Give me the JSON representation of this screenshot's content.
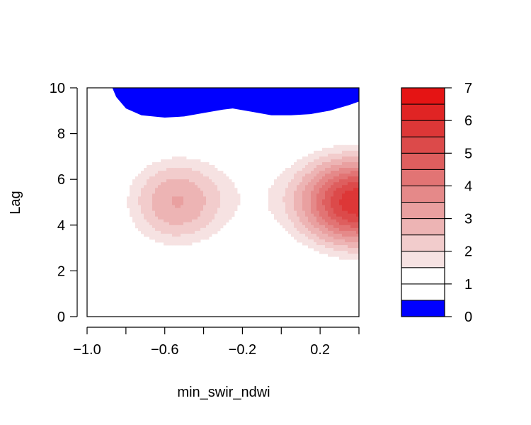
{
  "chart_data": {
    "type": "heatmap",
    "title": "",
    "xlabel": "min_swir_ndwi",
    "ylabel": "Lag",
    "xlim": [
      -1.0,
      0.4
    ],
    "ylim": [
      0,
      10
    ],
    "x_ticks": [
      -1.0,
      -0.8,
      -0.6,
      -0.4,
      -0.2,
      0.0,
      0.2,
      0.4
    ],
    "x_tick_labels": [
      "−1.0",
      "−0.6",
      "−0.2",
      "0.2"
    ],
    "x_tick_label_values": [
      -1.0,
      -0.6,
      -0.2,
      0.2
    ],
    "y_ticks": [
      0,
      2,
      4,
      6,
      8,
      10
    ],
    "y_tick_labels": [
      "0",
      "2",
      "4",
      "6",
      "8",
      "10"
    ],
    "legend": {
      "position": "right",
      "range": [
        0,
        7
      ],
      "levels": [
        0,
        0.5,
        1,
        1.5,
        2,
        2.5,
        3,
        3.5,
        4,
        4.5,
        5,
        5.5,
        6,
        6.5,
        7
      ],
      "tick_values": [
        0,
        1,
        2,
        3,
        4,
        5,
        6,
        7
      ],
      "tick_labels": [
        "0",
        "1",
        "2",
        "3",
        "4",
        "5",
        "6",
        "7"
      ],
      "colors": [
        "#0000ff",
        "#ffffff",
        "#ffffff",
        "#f6e2e2",
        "#f2cccc",
        "#edb4b4",
        "#e9a0a0",
        "#e58989",
        "#e27474",
        "#de5e5e",
        "#dc4a4a",
        "#dd3737",
        "#e02424",
        "#e51414"
      ]
    },
    "blobs": [
      {
        "x": -0.55,
        "y": 5.0,
        "sx": 0.2,
        "sy": 1.55,
        "amp": 2.55
      },
      {
        "x": 0.4,
        "y": 5.0,
        "sx": 0.22,
        "sy": 1.45,
        "amp": 5.4
      },
      {
        "x": -0.55,
        "y": 5.0,
        "sx": 0.45,
        "sy": 2.3,
        "amp": 0.2
      },
      {
        "x": 0.3,
        "y": 5.0,
        "sx": 0.5,
        "sy": 2.6,
        "amp": 0.35
      },
      {
        "x": -0.1,
        "y": 5.5,
        "sx": 0.35,
        "sy": 1.8,
        "amp": 0.45
      }
    ],
    "low_region": {
      "value": 0,
      "boundary": [
        [
          -0.87,
          10
        ],
        [
          -0.85,
          9.6
        ],
        [
          -0.8,
          9.1
        ],
        [
          -0.72,
          8.8
        ],
        [
          -0.6,
          8.7
        ],
        [
          -0.5,
          8.75
        ],
        [
          -0.4,
          8.9
        ],
        [
          -0.3,
          9.05
        ],
        [
          -0.25,
          9.1
        ],
        [
          -0.15,
          8.95
        ],
        [
          -0.05,
          8.8
        ],
        [
          0.05,
          8.8
        ],
        [
          0.15,
          8.85
        ],
        [
          0.25,
          9.0
        ],
        [
          0.35,
          9.25
        ],
        [
          0.4,
          9.4
        ]
      ]
    }
  }
}
